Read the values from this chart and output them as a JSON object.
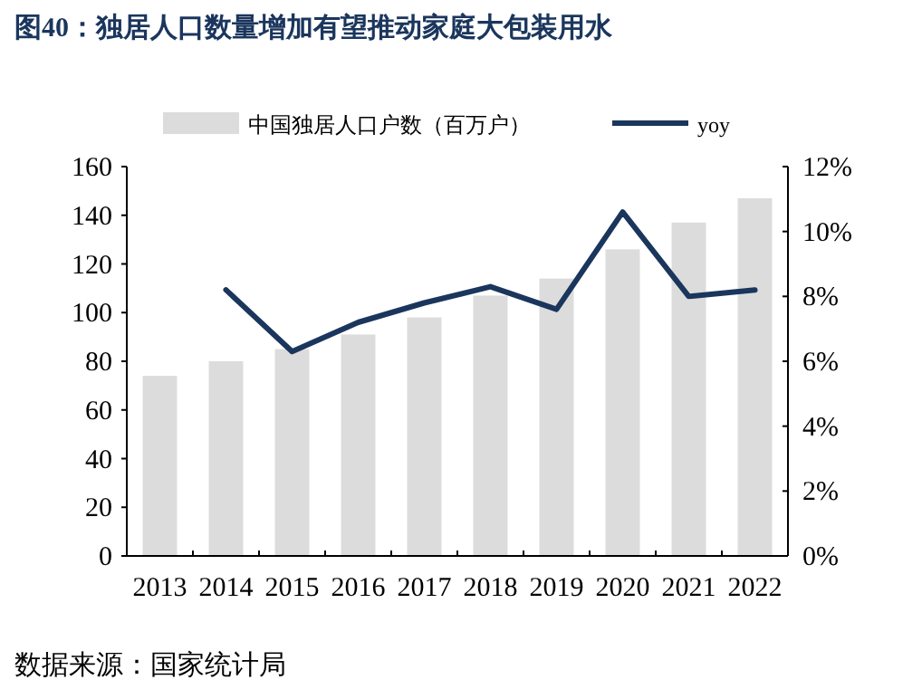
{
  "chart_data": {
    "type": "bar",
    "title": "图40：独居人口数量增加有望推动家庭大包装用水",
    "categories": [
      "2013",
      "2014",
      "2015",
      "2016",
      "2017",
      "2018",
      "2019",
      "2020",
      "2021",
      "2022"
    ],
    "series": [
      {
        "name": "中国独居人口户数（百万户）",
        "color": "#dcdcdc",
        "values": [
          74,
          80,
          85,
          91,
          98,
          107,
          114,
          126,
          137,
          147
        ]
      },
      {
        "name": "yoy",
        "type": "line",
        "axis": "y2",
        "color": "#1b365d",
        "values": [
          null,
          8.2,
          6.3,
          7.2,
          7.8,
          8.3,
          7.6,
          10.6,
          8.0,
          8.2
        ]
      }
    ],
    "ylim": [
      0,
      160
    ],
    "yticks": [
      0,
      20,
      40,
      60,
      80,
      100,
      120,
      140,
      160
    ],
    "y2lim": [
      0,
      12
    ],
    "y2ticks": [
      {
        "value": 0,
        "label": "0%"
      },
      {
        "value": 2,
        "label": "2%"
      },
      {
        "value": 4,
        "label": "4%"
      },
      {
        "value": 6,
        "label": "6%"
      },
      {
        "value": 8,
        "label": "8%"
      },
      {
        "value": 10,
        "label": "10%"
      },
      {
        "value": 12,
        "label": "12%"
      }
    ],
    "legend": "top",
    "grid": false,
    "annotations": [
      "数据来源：国家统计局"
    ]
  }
}
